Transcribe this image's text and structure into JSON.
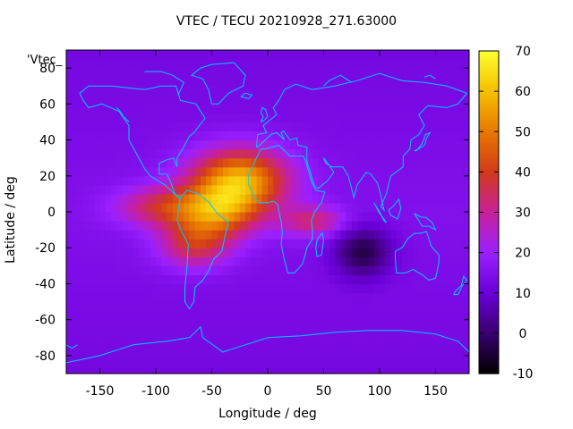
{
  "chart_data": {
    "type": "heatmap",
    "title": "VTEC / TECU 20210928_271.63000",
    "xlabel": "Longitude / deg",
    "ylabel": "Latitude / deg",
    "legend_entry": "'Vtec_",
    "xlim": [
      -180,
      180
    ],
    "ylim": [
      -90,
      90
    ],
    "xticks": [
      -150,
      -100,
      -50,
      0,
      50,
      100,
      150
    ],
    "yticks": [
      -80,
      -60,
      -40,
      -20,
      0,
      20,
      40,
      60,
      80
    ],
    "colorbar": {
      "range": [
        -10,
        70
      ],
      "ticks": [
        -10,
        0,
        10,
        20,
        30,
        40,
        50,
        60,
        70
      ],
      "palette": [
        "#000000",
        "#3a0070",
        "#6a00d8",
        "#9a20ff",
        "#c8209a",
        "#d23a1a",
        "#e87800",
        "#f5c000",
        "#ffff30"
      ]
    },
    "field": {
      "background_vtec": 15,
      "anomalies": [
        {
          "lon": -25,
          "lat": 18,
          "sig_lon": 30,
          "sig_lat": 12,
          "amp": 43
        },
        {
          "lon": -45,
          "lat": 0,
          "sig_lon": 26,
          "sig_lat": 10,
          "amp": 30
        },
        {
          "lon": -95,
          "lat": 3,
          "sig_lon": 28,
          "sig_lat": 8,
          "amp": 20
        },
        {
          "lon": -65,
          "lat": -18,
          "sig_lon": 22,
          "sig_lat": 9,
          "amp": 22
        },
        {
          "lon": 40,
          "lat": -5,
          "sig_lon": 20,
          "sig_lat": 6,
          "amp": 18
        },
        {
          "lon": 85,
          "lat": -22,
          "sig_lon": 18,
          "sig_lat": 10,
          "amp": -18
        }
      ]
    },
    "coastline_color": "#00c8ff"
  }
}
